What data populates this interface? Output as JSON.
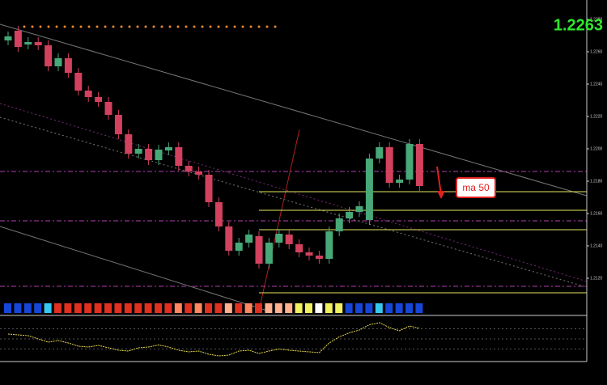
{
  "chart_data": {
    "type": "candlestick",
    "price_label": "1.2263",
    "annotation": "ma 50",
    "ylim": [
      1.21,
      1.2292
    ],
    "yticks": [
      {
        "value": 1.212,
        "label": "1.2120"
      },
      {
        "value": 1.214,
        "label": "1.2140"
      },
      {
        "value": 1.216,
        "label": "1.2160"
      },
      {
        "value": 1.218,
        "label": "1.2180"
      },
      {
        "value": 1.22,
        "label": "1.2200"
      },
      {
        "value": 1.222,
        "label": "1.2220"
      },
      {
        "value": 1.224,
        "label": "1.2240"
      },
      {
        "value": 1.226,
        "label": "1.2260"
      },
      {
        "value": 1.228,
        "label": "1.2280"
      }
    ],
    "up_color": "#47a878",
    "down_color": "#d2415e",
    "open": [
      1.2267,
      1.2273,
      1.22645,
      1.2266,
      1.2264,
      1.2251,
      1.2256,
      1.2247,
      1.2236,
      1.2232,
      1.2229,
      1.2221,
      1.2209,
      1.2197,
      1.22,
      1.2193,
      1.2199,
      1.2201,
      1.21895,
      1.2186,
      1.2184,
      1.2167,
      1.2152,
      1.2137,
      1.2142,
      1.2146,
      1.2129,
      1.2142,
      1.2147,
      1.2141,
      1.2136,
      1.2134,
      1.2132,
      1.2149,
      1.2157,
      1.2161,
      1.2156,
      1.2194,
      1.2201,
      1.2179,
      1.2181,
      1.2203
    ],
    "close": [
      1.22695,
      1.2263,
      1.2266,
      1.2264,
      1.2251,
      1.2256,
      1.2247,
      1.2236,
      1.2232,
      1.2229,
      1.2221,
      1.2209,
      1.2197,
      1.22,
      1.2193,
      1.21995,
      1.2201,
      1.21895,
      1.2186,
      1.2184,
      1.2167,
      1.2152,
      1.2137,
      1.2142,
      1.2147,
      1.2129,
      1.2142,
      1.21475,
      1.2141,
      1.2136,
      1.2134,
      1.2132,
      1.2149,
      1.2157,
      1.2161,
      1.21645,
      1.2194,
      1.2201,
      1.2179,
      1.2181,
      1.2203,
      1.2177
    ],
    "high": [
      1.22725,
      1.2276,
      1.2269,
      1.2269,
      1.2267,
      1.2259,
      1.2259,
      1.225,
      1.2239,
      1.2235,
      1.2232,
      1.2224,
      1.2212,
      1.2203,
      1.2203,
      1.22025,
      1.2204,
      1.2204,
      1.21925,
      1.2189,
      1.2187,
      1.217,
      1.2155,
      1.2145,
      1.215,
      1.2149,
      1.2145,
      1.21505,
      1.215,
      1.2144,
      1.2139,
      1.2137,
      1.2152,
      1.216,
      1.2164,
      1.21675,
      1.2197,
      1.2204,
      1.2204,
      1.2184,
      1.2206,
      1.2206
    ],
    "low": [
      1.2264,
      1.226,
      1.22615,
      1.2261,
      1.2248,
      1.2248,
      1.2244,
      1.2233,
      1.2229,
      1.2226,
      1.2218,
      1.2206,
      1.2194,
      1.2194,
      1.219,
      1.219,
      1.2196,
      1.21865,
      1.2183,
      1.2181,
      1.2164,
      1.2149,
      1.2134,
      1.2134,
      1.2139,
      1.2126,
      1.2126,
      1.2139,
      1.2138,
      1.2133,
      1.2131,
      1.2129,
      1.2129,
      1.2146,
      1.2154,
      1.2158,
      1.2153,
      1.2191,
      1.2176,
      1.2176,
      1.2178,
      1.2174
    ],
    "levels": [
      {
        "value": 1.2186,
        "color": "#b03fb0"
      },
      {
        "value": 1.21555,
        "color": "#b03fb0"
      },
      {
        "value": 1.2115,
        "color": "#b03fb0"
      },
      {
        "value": 1.21735,
        "color": "#e8e85a"
      },
      {
        "value": 1.2162,
        "color": "#e8e85a"
      },
      {
        "value": 1.215,
        "color": "#e8e85a"
      },
      {
        "value": 1.2111,
        "color": "#e8e85a"
      }
    ],
    "signal_colors": [
      "#1646d8",
      "#1646d8",
      "#1646d8",
      "#1646d8",
      "#36c8f0",
      "#e03020",
      "#e03020",
      "#e03020",
      "#e03020",
      "#e03020",
      "#e03020",
      "#e03020",
      "#e03020",
      "#e03020",
      "#e03020",
      "#e03020",
      "#e03020",
      "#ff8860",
      "#e03020",
      "#ff8860",
      "#e03020",
      "#e03020",
      "#ffb090",
      "#e03020",
      "#ff8860",
      "#e03020",
      "#ffb090",
      "#ffb090",
      "#ffb090",
      "#f0f060",
      "#f0f060",
      "#ffffff",
      "#f0f060",
      "#f0f060",
      "#1646d8",
      "#1646d8",
      "#1646d8",
      "#36c8f0",
      "#1646d8",
      "#1646d8",
      "#1646d8",
      "#1646d8"
    ],
    "indicator": {
      "ylim": [
        0,
        1
      ],
      "color": "#e6d84a",
      "values": [
        0.62,
        0.6,
        0.58,
        0.5,
        0.42,
        0.46,
        0.4,
        0.32,
        0.3,
        0.34,
        0.28,
        0.22,
        0.2,
        0.28,
        0.3,
        0.35,
        0.3,
        0.22,
        0.18,
        0.2,
        0.12,
        0.08,
        0.1,
        0.2,
        0.22,
        0.14,
        0.2,
        0.25,
        0.22,
        0.2,
        0.18,
        0.16,
        0.4,
        0.55,
        0.65,
        0.72,
        0.85,
        0.9,
        0.78,
        0.7,
        0.82,
        0.76
      ]
    }
  }
}
